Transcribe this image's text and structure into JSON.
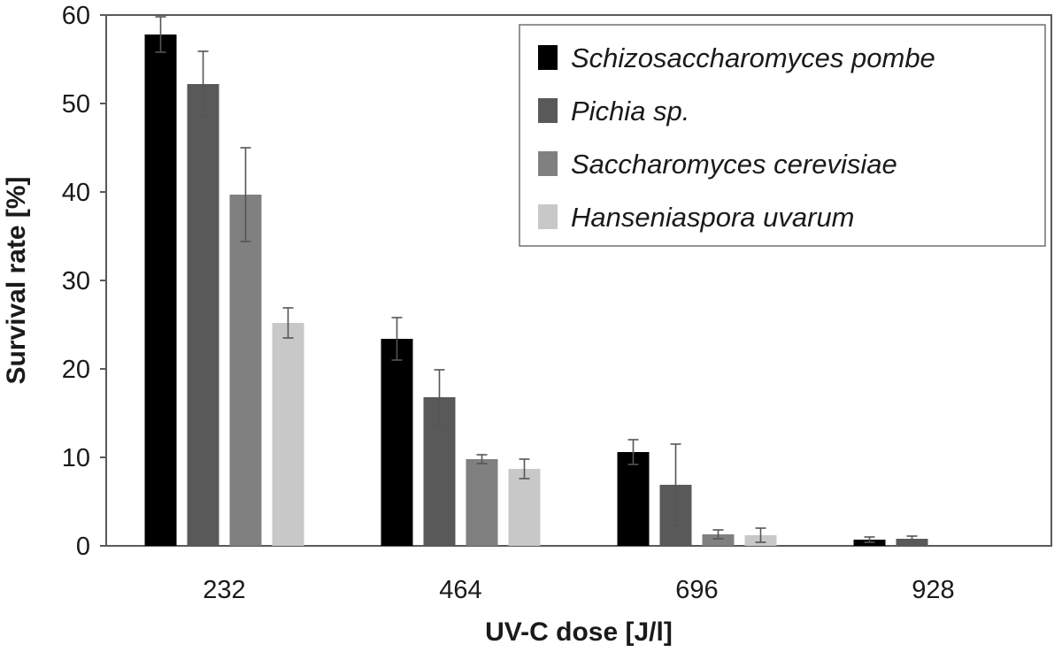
{
  "chart_data": {
    "type": "bar",
    "xlabel": "UV-C dose [J/l]",
    "ylabel": "Survival rate [%]",
    "ylim": [
      0,
      60
    ],
    "yticks": [
      0,
      10,
      20,
      30,
      40,
      50,
      60
    ],
    "categories": [
      "232",
      "464",
      "696",
      "928"
    ],
    "grid": false,
    "legend_position": "top-right",
    "series": [
      {
        "name": "Schizosaccharomyces pombe",
        "color": "#000000",
        "values": [
          57.8,
          23.4,
          10.6,
          0.7
        ],
        "errors": [
          2.0,
          2.4,
          1.4,
          0.3
        ]
      },
      {
        "name": "Pichia sp.",
        "color": "#595959",
        "values": [
          52.2,
          16.8,
          6.9,
          0.8
        ],
        "errors": [
          3.7,
          3.1,
          4.6,
          0.3
        ]
      },
      {
        "name": "Saccharomyces cerevisiae",
        "color": "#808080",
        "values": [
          39.7,
          9.8,
          1.3,
          null
        ],
        "errors": [
          5.3,
          0.5,
          0.5,
          null
        ]
      },
      {
        "name": "Hanseniaspora uvarum",
        "color": "#c8c8c8",
        "values": [
          25.2,
          8.7,
          1.2,
          null
        ],
        "errors": [
          1.7,
          1.1,
          0.8,
          null
        ]
      }
    ]
  }
}
